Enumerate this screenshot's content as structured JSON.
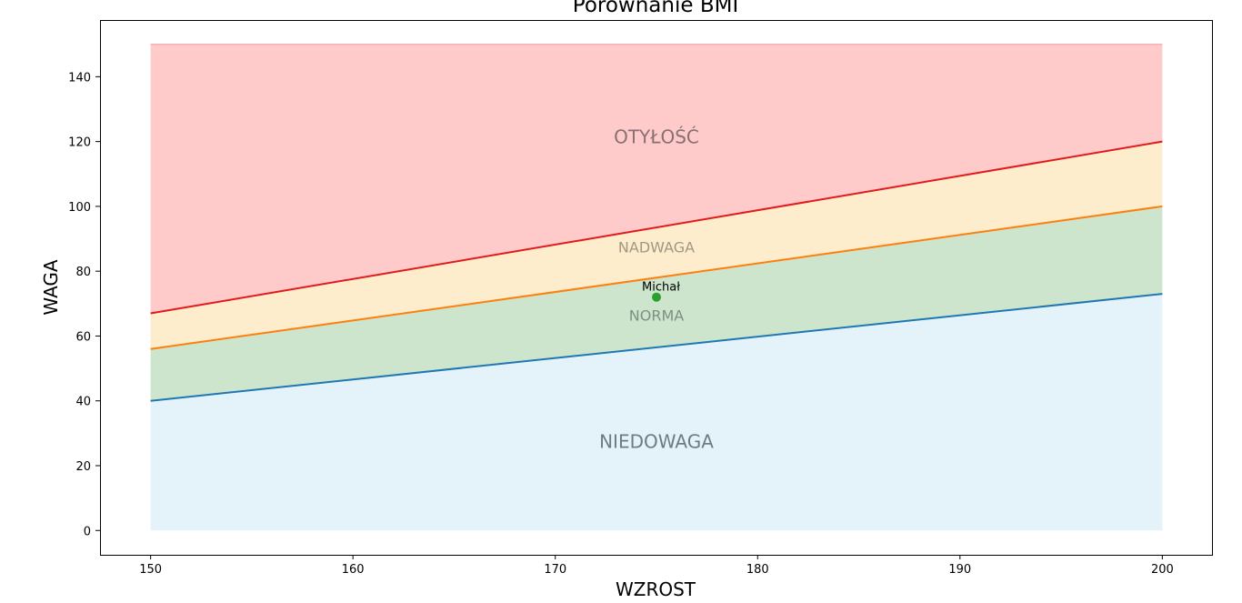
{
  "chart_data": {
    "type": "area",
    "title": "Porównanie BMI",
    "xlabel": "WZROST",
    "ylabel": "WAGA",
    "xlim": [
      147.5,
      202.5
    ],
    "ylim": [
      -7.5,
      157.5
    ],
    "x_ticks": [
      150,
      160,
      170,
      180,
      190,
      200
    ],
    "y_ticks": [
      0,
      20,
      40,
      60,
      80,
      100,
      120,
      140
    ],
    "grid": false,
    "x": [
      150,
      200
    ],
    "series": [
      {
        "key": "underweight_limit",
        "values": [
          40,
          73
        ],
        "color": "#1f77b4"
      },
      {
        "key": "normal_limit",
        "values": [
          56,
          100
        ],
        "color": "#ff7f0e"
      },
      {
        "key": "overweight_limit",
        "values": [
          67,
          120
        ],
        "color": "#e31a1c"
      }
    ],
    "zones": [
      {
        "label": "NIEDOWAGA",
        "lower": [
          0,
          0
        ],
        "upper": [
          40,
          73
        ],
        "fill": "#e4f3fa",
        "text_color": "#6e7b85",
        "label_x": 175,
        "label_y": 27
      },
      {
        "label": "NORMA",
        "lower": [
          40,
          73
        ],
        "upper": [
          56,
          100
        ],
        "fill": "#cce5cc",
        "text_color": "#7f8f83",
        "label_x": 175,
        "label_y": 66
      },
      {
        "label": "NADWAGA",
        "lower": [
          56,
          100
        ],
        "upper": [
          67,
          120
        ],
        "fill": "#fdedcc",
        "text_color": "#a09786",
        "label_x": 175,
        "label_y": 87
      },
      {
        "label": "OTYŁOŚĆ",
        "lower": [
          67,
          120
        ],
        "upper": [
          150,
          150
        ],
        "fill": "#fecaca",
        "text_color": "#8a6f74",
        "label_x": 175,
        "label_y": 121
      }
    ],
    "points": [
      {
        "label": "Michał",
        "x": 175,
        "y": 72,
        "color": "#2ca02c"
      }
    ]
  }
}
